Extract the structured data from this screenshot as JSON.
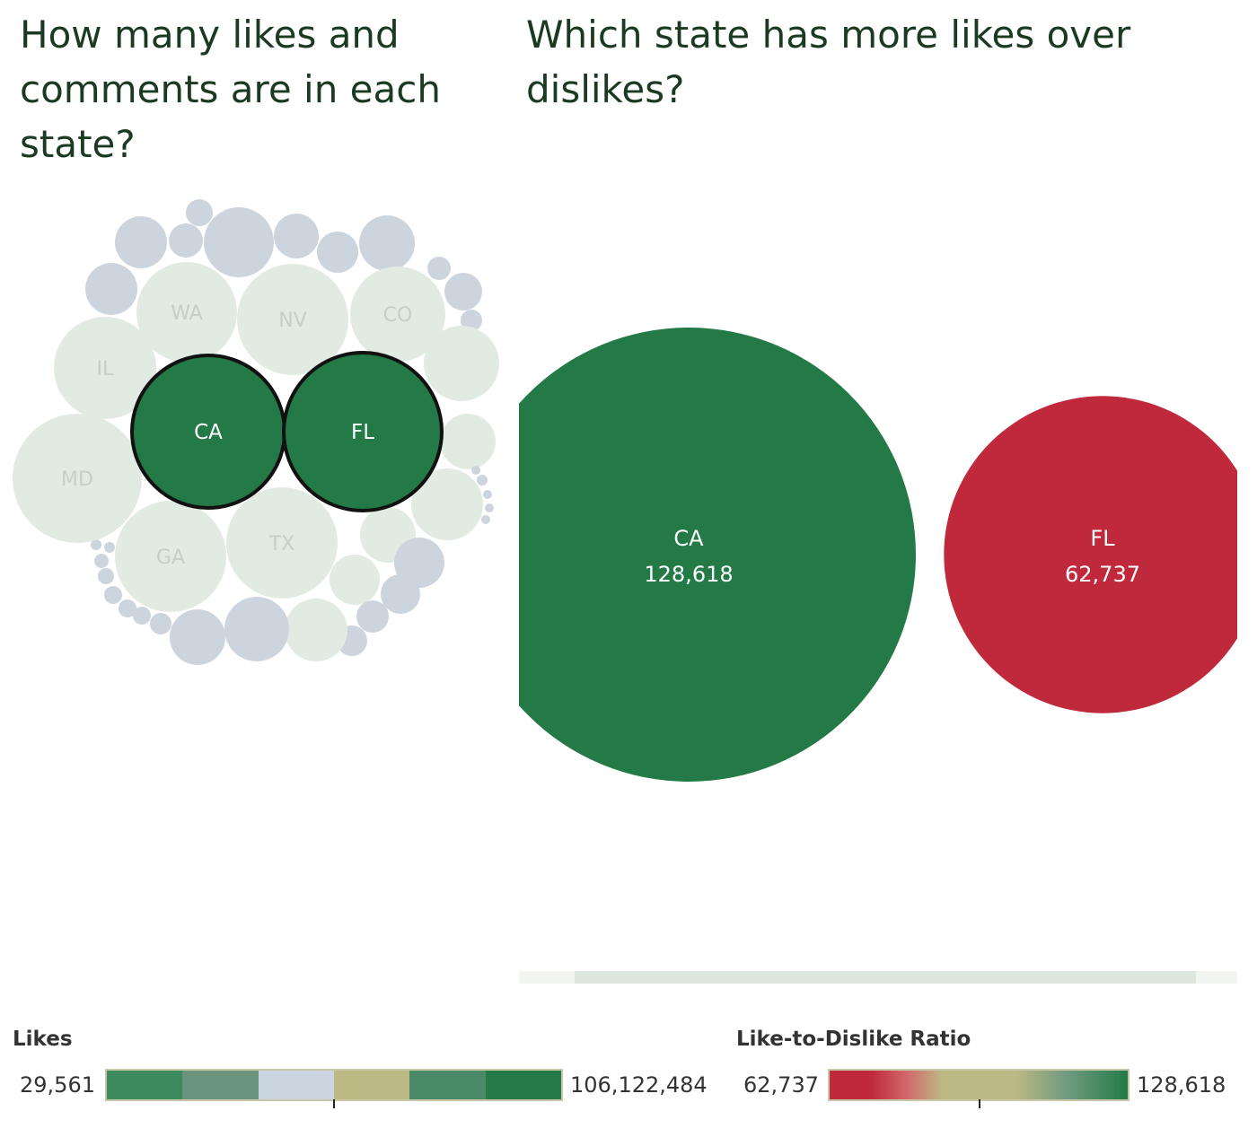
{
  "titles": {
    "left": "How many likes and comments are in each state?",
    "right": "Which state has more likes over dislikes?"
  },
  "colors": {
    "highlight_green": "#237a46",
    "pale_green": "#e2ebe2",
    "pale_blue": "#ccd5de",
    "red": "#c0283c",
    "label_dim": "#c4d0c4",
    "label_bright": "#ffffff"
  },
  "chart_data": [
    {
      "type": "bubble",
      "title": "How many likes and comments are in each state?",
      "size_measure": "Likes",
      "labeled_states": [
        "CA",
        "FL",
        "WA",
        "NV",
        "CO",
        "IL",
        "MD",
        "GA",
        "TX"
      ],
      "highlighted_states": [
        "CA",
        "FL"
      ]
    },
    {
      "type": "bubble",
      "title": "Which state has more likes over dislikes?",
      "color_measure": "Like-to-Dislike Ratio",
      "states": [
        {
          "name": "CA",
          "value": 128618,
          "label": "128,618",
          "color": "#237a46"
        },
        {
          "name": "FL",
          "value": 62737,
          "label": "62,737",
          "color": "#c0283c"
        }
      ]
    }
  ],
  "legends": {
    "likes": {
      "title": "Likes",
      "min_label": "29,561",
      "max_label": "106,122,484",
      "min": 29561,
      "max": 106122484,
      "swatches": [
        "#3c8a5e",
        "#6a947c",
        "#cbd5df",
        "#bdb984",
        "#4a8a66",
        "#237a46"
      ]
    },
    "ratio": {
      "title": "Like-to-Dislike Ratio",
      "min_label": "62,737",
      "max_label": "128,618",
      "min": 62737,
      "max": 128618
    }
  }
}
